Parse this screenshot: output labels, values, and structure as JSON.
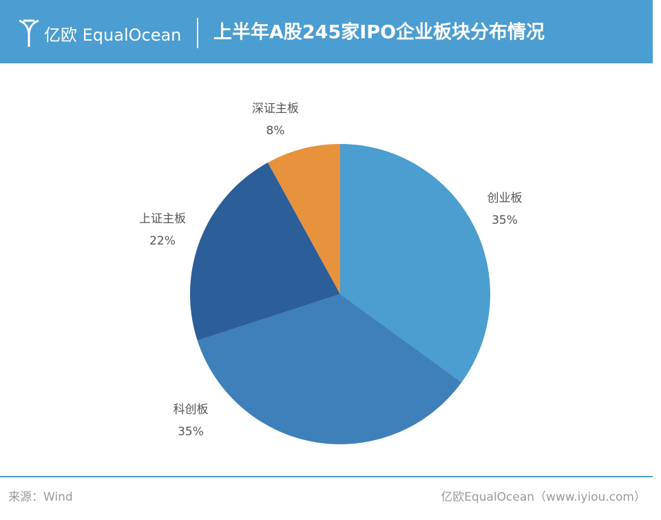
{
  "header": {
    "logo": "亿欧 EqualOcean"
  },
  "chart_data": {
    "type": "pie",
    "title": "上半年A股245家IPO企业板块分布情况",
    "categories": [
      "创业板",
      "科创板",
      "上证主板",
      "深证主板"
    ],
    "values": [
      35,
      35,
      22,
      8
    ],
    "value_labels": [
      "35%",
      "35%",
      "22%",
      "8%"
    ],
    "colors": [
      "#4b9ecf",
      "#3e80b9",
      "#2c5e99",
      "#e8923e"
    ]
  },
  "footer": {
    "source": "来源：Wind",
    "credit": "亿欧EqualOcean（www.iyiou.com）"
  }
}
